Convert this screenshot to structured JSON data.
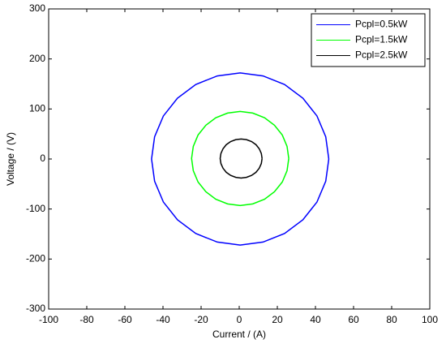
{
  "chart_data": {
    "type": "line",
    "xlabel": "Current  / (A)",
    "ylabel": "Voltage / (V)",
    "xlim": [
      -100,
      100
    ],
    "xticks": [
      -100,
      -80,
      -60,
      -40,
      -20,
      0,
      20,
      40,
      60,
      80,
      100
    ],
    "ylim": [
      -300,
      300
    ],
    "yticks": [
      -300,
      -200,
      -100,
      0,
      100,
      200,
      300
    ],
    "legend": "northeast",
    "series": [
      {
        "name": "Pcpl=0.5kW",
        "color": "#0000ff",
        "x": [
          47,
          45.4,
          40.8,
          33.4,
          23.8,
          12.5,
          0.5,
          -11.5,
          -22.8,
          -32.4,
          -39.8,
          -44.4,
          -46,
          -44.4,
          -39.8,
          -32.4,
          -22.8,
          -11.5,
          0.5,
          12.5,
          23.8,
          33.4,
          40.8,
          45.4,
          47
        ],
        "values": [
          0,
          44.5,
          86,
          121.6,
          149,
          166.1,
          172,
          166.1,
          149,
          121.6,
          86,
          44.5,
          0,
          -44.5,
          -86,
          -121.6,
          -149,
          -166.1,
          -172,
          -166.1,
          -149,
          -121.6,
          -86,
          -44.5,
          0
        ]
      },
      {
        "name": "Pcpl=1.5kW",
        "color": "#00ff00",
        "x": [
          26,
          25.1,
          22.6,
          18.5,
          13.3,
          7.1,
          0.5,
          -6.1,
          -12.3,
          -17.5,
          -21.6,
          -24.1,
          -25,
          -24.1,
          -21.6,
          -17.5,
          -12.3,
          -6.1,
          0.5,
          7.1,
          13.3,
          18.5,
          22.6,
          25.1,
          26
        ],
        "values": [
          1,
          25.3,
          48,
          67.5,
          82.4,
          91.8,
          95,
          91.8,
          82.4,
          67.5,
          48,
          25.3,
          1,
          -23.3,
          -46,
          -65.5,
          -80.4,
          -89.8,
          -93,
          -89.8,
          -80.4,
          -65.5,
          -46,
          -23.3,
          1
        ]
      },
      {
        "name": "Pcpl=2.5kW",
        "color": "#000000",
        "x": [
          12,
          11.6,
          10.5,
          8.8,
          6.5,
          3.8,
          1,
          -1.8,
          -4.5,
          -6.8,
          -8.5,
          -9.6,
          -10,
          -9.6,
          -8.5,
          -6.8,
          -4.5,
          -1.8,
          1,
          3.8,
          6.5,
          8.8,
          10.5,
          11.6,
          12
        ],
        "values": [
          1,
          11.1,
          20.5,
          28.6,
          34.8,
          38.7,
          40,
          38.7,
          34.8,
          28.6,
          20.5,
          11.1,
          1,
          -9.1,
          -18.5,
          -26.6,
          -32.8,
          -36.7,
          -38,
          -36.7,
          -32.8,
          -26.6,
          -18.5,
          -9.1,
          1
        ]
      }
    ]
  }
}
